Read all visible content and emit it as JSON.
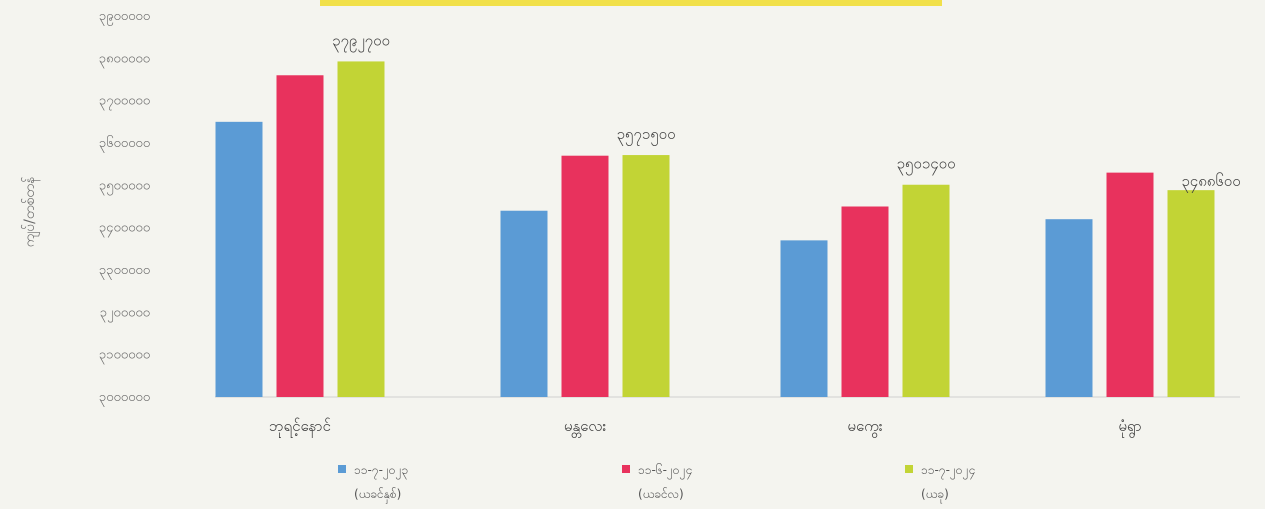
{
  "chart_data": {
    "type": "bar",
    "ylabel": "ကျပ်/တစ်တန်",
    "ylim": [
      3000000,
      3900000
    ],
    "y_ticks": [
      "၃၀၀၀၀၀၀",
      "၃၁၀၀၀၀၀",
      "၃၂၀၀၀၀၀",
      "၃၃၀၀၀၀၀",
      "၃၄၀၀၀၀၀",
      "၃၅၀၀၀၀၀",
      "၃၆၀၀၀၀၀",
      "၃၇၀၀၀၀၀",
      "၃၈၀၀၀၀၀",
      "၃၉၀၀၀၀၀"
    ],
    "categories": [
      "ဘုရင့်နောင်",
      "မန္တလေး",
      "မကွေး",
      "မုံရွာ"
    ],
    "series": [
      {
        "name_line1": "၁၁-၇-၂၀၂၃",
        "name_line2": "(ယခင်နှစ်)",
        "color": "#5b9bd5",
        "values": [
          3650000,
          3440000,
          3370000,
          3420000
        ]
      },
      {
        "name_line1": "၁၁-၆-၂၀၂၄",
        "name_line2": "(ယခင်လ)",
        "color": "#e8325d",
        "values": [
          3760000,
          3570000,
          3450000,
          3530000
        ]
      },
      {
        "name_line1": "၁၁-၇-၂၀၂၄",
        "name_line2": "(ယခု)",
        "color": "#c2d435",
        "values": [
          3792700,
          3571500,
          3501400,
          3488600
        ]
      }
    ],
    "data_labels": [
      "၃၇၉၂၇၀၀",
      "၃၅၇၁၅၀၀",
      "၃၅၀၁၄၀၀",
      "၃၄၈၈၆၀၀"
    ],
    "grid": false,
    "legend_position": "bottom"
  }
}
